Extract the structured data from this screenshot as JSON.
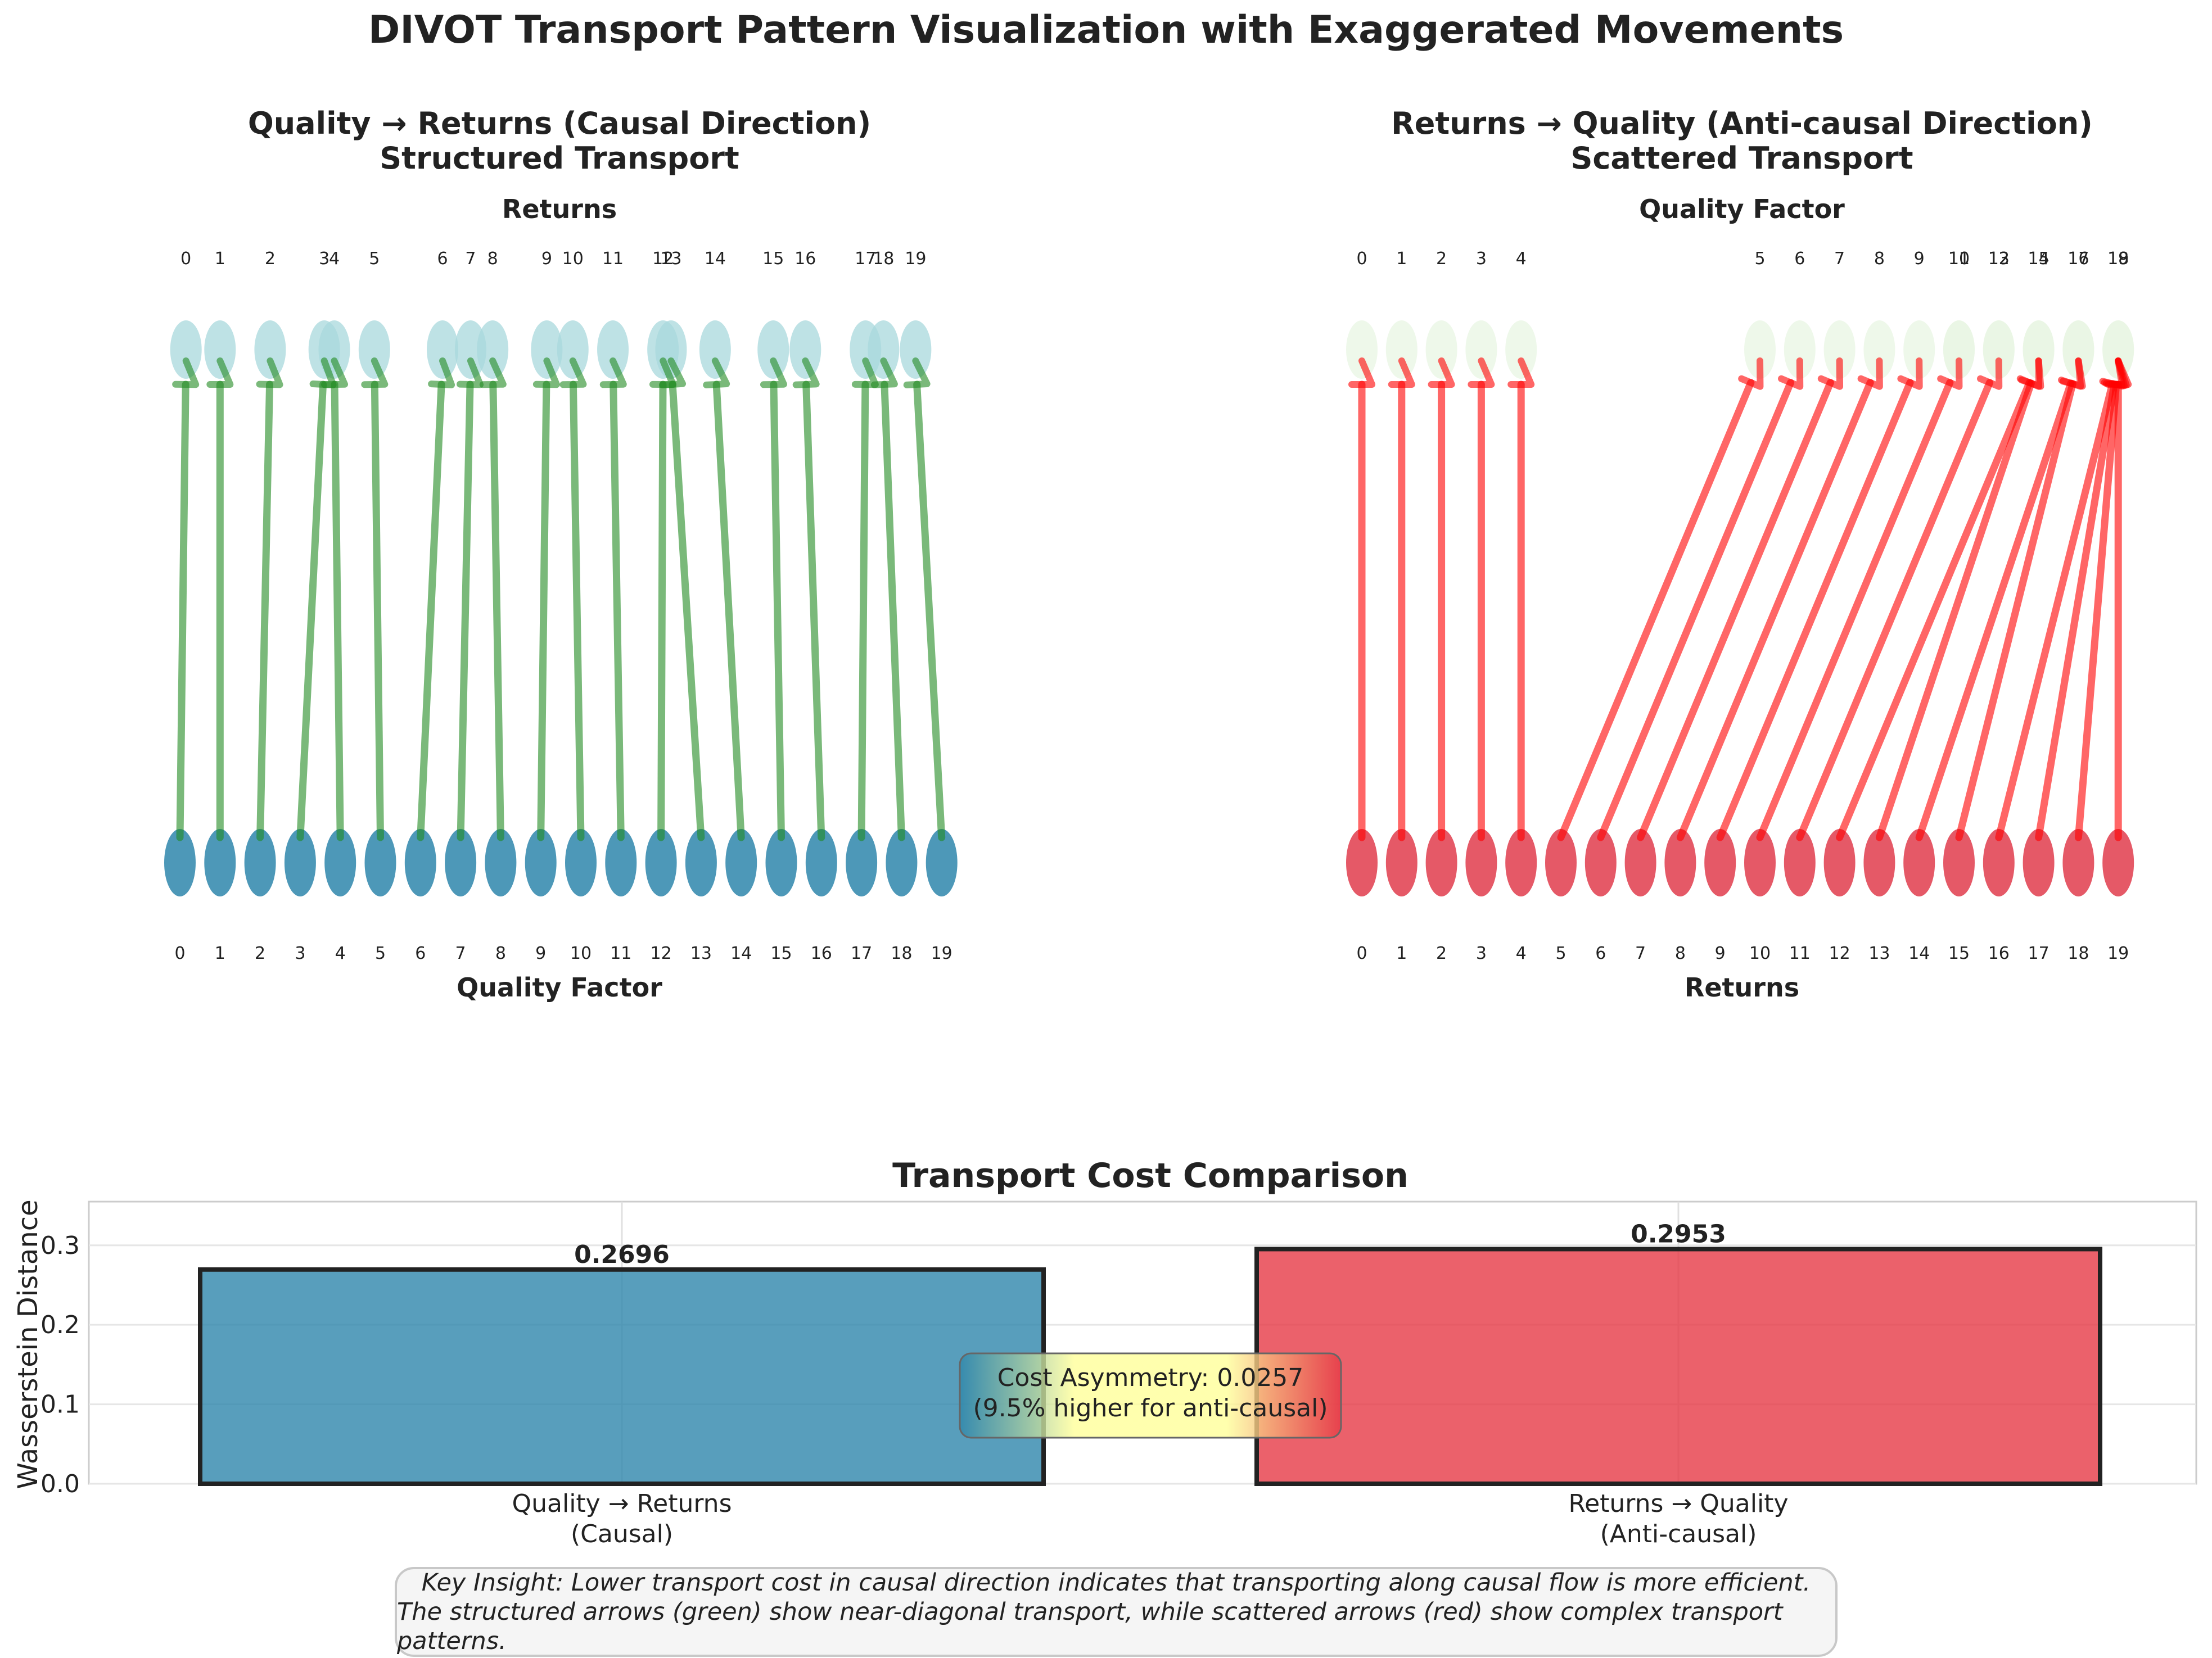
{
  "figure": {
    "suptitle": "DIVOT Transport Pattern Visualization with Exaggerated Movements"
  },
  "colors": {
    "causal_source": "#2e86ab",
    "causal_target": "#a8d8dc",
    "causal_arrow": "#228b22",
    "anticausal_source": "#e03c4c",
    "anticausal_target": "#e8f5e3",
    "anticausal_arrow": "#ff0000",
    "bar_causal": "#2e86ab",
    "bar_anticausal": "#e63946",
    "annotation_fill": "#ffff99"
  },
  "chart_data": [
    {
      "type": "transport",
      "panel": "left",
      "title_line1": "Quality → Returns (Causal Direction)",
      "title_line2": "Structured Transport",
      "top_label": "Returns",
      "bottom_label": "Quality Factor",
      "source_indices": [
        0,
        1,
        2,
        3,
        4,
        5,
        6,
        7,
        8,
        9,
        10,
        11,
        12,
        13,
        14,
        15,
        16,
        17,
        18,
        19
      ],
      "target_indices": [
        0,
        1,
        2,
        3,
        4,
        5,
        6,
        7,
        8,
        9,
        10,
        11,
        12,
        13,
        14,
        15,
        16,
        17,
        18,
        19
      ],
      "target_positions": [
        0.15,
        1.0,
        2.25,
        3.6,
        3.85,
        4.85,
        6.55,
        7.25,
        7.8,
        9.15,
        9.8,
        10.8,
        12.05,
        12.25,
        13.35,
        14.8,
        15.6,
        17.1,
        17.55,
        18.35
      ],
      "mapping": [
        0,
        1,
        2,
        3,
        4,
        5,
        6,
        7,
        8,
        9,
        10,
        11,
        12,
        13,
        14,
        15,
        16,
        17,
        18,
        19
      ]
    },
    {
      "type": "transport",
      "panel": "right",
      "title_line1": "Returns → Quality (Anti-causal Direction)",
      "title_line2": "Scattered Transport",
      "top_label": "Quality Factor",
      "bottom_label": "Returns",
      "source_indices": [
        0,
        1,
        2,
        3,
        4,
        5,
        6,
        7,
        8,
        9,
        10,
        11,
        12,
        13,
        14,
        15,
        16,
        17,
        18,
        19
      ],
      "target_indices": [
        0,
        1,
        2,
        3,
        4,
        5,
        6,
        7,
        8,
        9,
        10,
        11,
        12,
        13,
        14,
        15,
        16,
        17,
        18,
        19
      ],
      "target_positions": [
        0,
        1,
        2,
        3,
        4,
        10,
        11,
        12,
        13,
        14,
        15,
        15,
        16,
        16,
        17,
        17,
        18,
        18,
        19,
        19
      ],
      "mapping": [
        0,
        1,
        2,
        3,
        4,
        5,
        6,
        7,
        8,
        9,
        10,
        12,
        14,
        15,
        16,
        17,
        18,
        18,
        19,
        19
      ]
    },
    {
      "type": "bar",
      "title": "Transport Cost Comparison",
      "ylabel": "Wasserstein Distance",
      "categories": [
        "Quality → Returns\n(Causal)",
        "Returns → Quality\n(Anti-causal)"
      ],
      "categories_line1": [
        "Quality → Returns",
        "Returns → Quality"
      ],
      "categories_line2": [
        "(Causal)",
        "(Anti-causal)"
      ],
      "values": [
        0.2696,
        0.2953
      ],
      "value_labels": [
        "0.2696",
        "0.2953"
      ],
      "ylim": [
        0,
        0.355
      ],
      "yticks": [
        "0.0",
        "0.1",
        "0.2",
        "0.3"
      ],
      "annotation_line1": "Cost Asymmetry: 0.0257",
      "annotation_line2": "(9.5% higher for anti-causal)",
      "grid": true
    }
  ],
  "insight": {
    "line1": "Key Insight: Lower transport cost in causal direction indicates that transporting along causal flow is more efficient.",
    "line2": "The structured arrows (green) show near-diagonal transport, while scattered arrows (red) show complex transport patterns."
  }
}
